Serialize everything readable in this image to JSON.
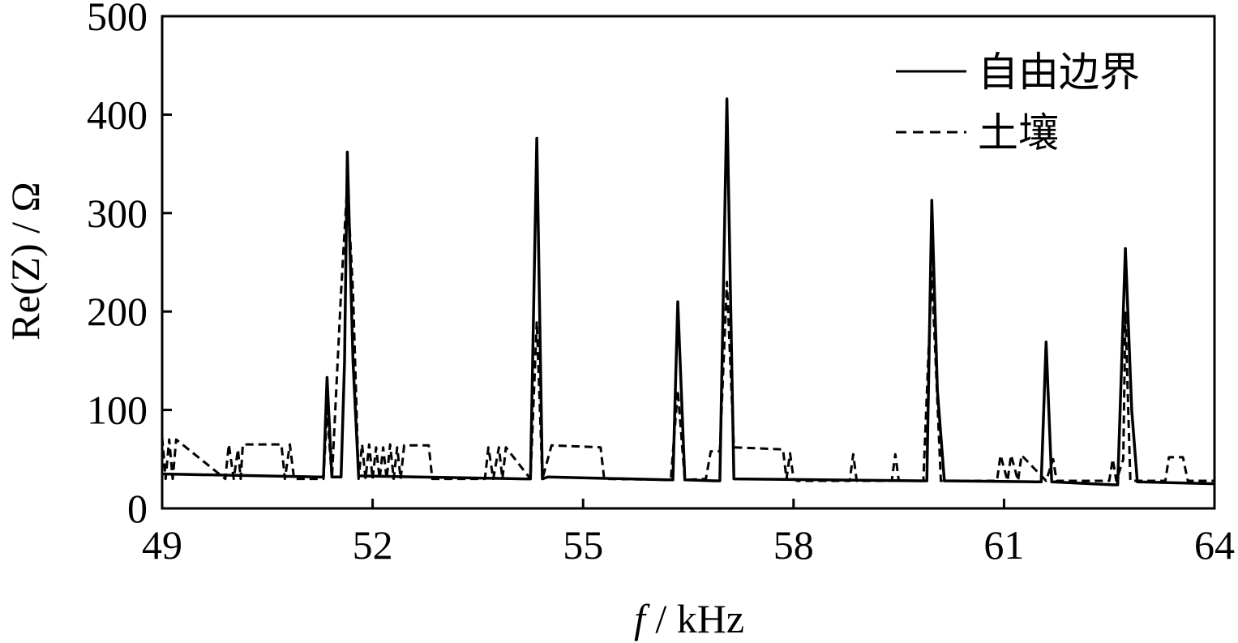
{
  "chart_data": {
    "type": "line",
    "xlabel_symbol": "f",
    "xlabel_unit": " / kHz",
    "ylabel": "Re(Z) / Ω",
    "xlim": [
      49,
      64
    ],
    "ylim": [
      0,
      500
    ],
    "xticks": [
      "49",
      "52",
      "55",
      "58",
      "61",
      "64"
    ],
    "yticks": [
      "0",
      "100",
      "200",
      "300",
      "400",
      "500"
    ],
    "xtick_values": [
      49,
      52,
      55,
      58,
      61,
      64
    ],
    "ytick_values": [
      0,
      100,
      200,
      300,
      400,
      500
    ],
    "legend_position": "top-right",
    "series": [
      {
        "name": "自由边界",
        "style": "solid",
        "color": "#000000",
        "x": [
          49.0,
          51.2,
          51.3,
          51.35,
          51.42,
          51.55,
          51.6,
          51.64,
          51.72,
          51.8,
          54.15,
          54.25,
          54.34,
          54.42,
          54.5,
          56.2,
          56.28,
          56.35,
          56.45,
          56.88,
          56.95,
          57.05,
          57.15,
          59.8,
          59.9,
          59.97,
          60.05,
          60.15,
          61.45,
          61.53,
          61.6,
          61.68,
          62.55,
          62.62,
          62.73,
          62.82,
          62.9,
          64.0
        ],
        "y": [
          35,
          32,
          32,
          133,
          32,
          32,
          150,
          362,
          150,
          33,
          30,
          30,
          376,
          30,
          32,
          29,
          29,
          210,
          29,
          28,
          28,
          416,
          30,
          28,
          28,
          313,
          120,
          28,
          27,
          27,
          169,
          27,
          24,
          24,
          264,
          100,
          27,
          25
        ]
      },
      {
        "name": "土壤",
        "style": "dashed",
        "color": "#000000",
        "x": [
          49.0,
          49.05,
          49.1,
          49.15,
          49.2,
          49.9,
          49.95,
          50.02,
          50.08,
          50.12,
          50.15,
          50.2,
          50.7,
          50.75,
          50.82,
          50.88,
          51.2,
          51.3,
          51.35,
          51.42,
          51.55,
          51.64,
          51.72,
          51.8,
          51.85,
          51.9,
          51.95,
          52.0,
          52.05,
          52.1,
          52.15,
          52.2,
          52.25,
          52.3,
          52.35,
          52.4,
          52.45,
          52.8,
          52.85,
          53.6,
          53.65,
          53.72,
          53.8,
          53.85,
          53.9,
          54.25,
          54.34,
          54.42,
          54.55,
          55.25,
          55.3,
          56.25,
          56.35,
          56.45,
          56.75,
          56.82,
          56.95,
          57.05,
          57.15,
          57.85,
          57.9,
          57.95,
          58.0,
          58.05,
          58.8,
          58.85,
          58.9,
          59.4,
          59.45,
          59.5,
          59.85,
          59.97,
          60.1,
          60.9,
          60.95,
          61.05,
          61.1,
          61.2,
          61.25,
          61.6,
          61.7,
          61.75,
          62.5,
          62.55,
          62.6,
          62.7,
          62.73,
          62.8,
          63.3,
          63.35,
          63.45,
          63.55,
          63.62,
          64.0
        ],
        "y": [
          72,
          30,
          70,
          30,
          70,
          30,
          65,
          30,
          60,
          30,
          65,
          65,
          65,
          30,
          65,
          30,
          30,
          30,
          100,
          30,
          220,
          330,
          220,
          30,
          65,
          30,
          65,
          30,
          62,
          30,
          62,
          30,
          65,
          30,
          62,
          30,
          64,
          64,
          30,
          30,
          62,
          30,
          62,
          30,
          62,
          30,
          190,
          30,
          64,
          62,
          30,
          29,
          120,
          29,
          30,
          58,
          58,
          230,
          62,
          60,
          30,
          56,
          30,
          28,
          28,
          55,
          28,
          28,
          55,
          28,
          28,
          240,
          28,
          28,
          54,
          28,
          54,
          28,
          54,
          28,
          50,
          28,
          28,
          50,
          28,
          50,
          200,
          28,
          28,
          52,
          52,
          52,
          28,
          28
        ]
      }
    ]
  }
}
